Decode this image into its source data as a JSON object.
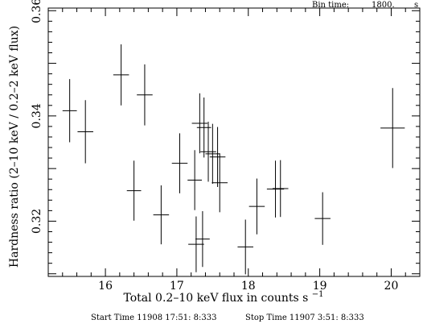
{
  "header": {
    "bin_label": "Bin time:",
    "bin_value": "1800.",
    "bin_unit": "s"
  },
  "footer": {
    "start_time": "Start Time 11908 17:51: 8:333",
    "stop_time": "Stop Time 11907  3:51: 8:333"
  },
  "chart_data": {
    "type": "scatter",
    "xlabel": "Total 0.2–10 keV flux in counts s",
    "xlabel_sup": "−1",
    "ylabel": "Hardness ratio (2–10 keV / 0.2–2 keV flux)",
    "xlim": [
      15.2,
      20.4
    ],
    "ylim": [
      0.3095,
      0.3605
    ],
    "xticks": [
      16,
      17,
      18,
      19,
      20
    ],
    "xtick_labels": [
      "16",
      "17",
      "18",
      "19",
      "20"
    ],
    "yticks": [
      0.32,
      0.34,
      0.36
    ],
    "ytick_labels": [
      "0.32",
      "0.34",
      "0.36"
    ],
    "grid": false,
    "points": [
      {
        "x": 15.5,
        "xerr": 0.1,
        "y": 0.341,
        "yerr": 0.006
      },
      {
        "x": 15.72,
        "xerr": 0.11,
        "y": 0.337,
        "yerr": 0.006
      },
      {
        "x": 16.22,
        "xerr": 0.11,
        "y": 0.3478,
        "yerr": 0.0058
      },
      {
        "x": 16.4,
        "xerr": 0.1,
        "y": 0.3258,
        "yerr": 0.0057
      },
      {
        "x": 16.55,
        "xerr": 0.11,
        "y": 0.344,
        "yerr": 0.0058
      },
      {
        "x": 16.78,
        "xerr": 0.11,
        "y": 0.3212,
        "yerr": 0.0056
      },
      {
        "x": 17.04,
        "xerr": 0.11,
        "y": 0.331,
        "yerr": 0.0057
      },
      {
        "x": 17.25,
        "xerr": 0.1,
        "y": 0.3278,
        "yerr": 0.0057
      },
      {
        "x": 17.27,
        "xerr": 0.11,
        "y": 0.3156,
        "yerr": 0.0053
      },
      {
        "x": 17.32,
        "xerr": 0.11,
        "y": 0.3386,
        "yerr": 0.0057
      },
      {
        "x": 17.36,
        "xerr": 0.1,
        "y": 0.3166,
        "yerr": 0.0053
      },
      {
        "x": 17.38,
        "xerr": 0.1,
        "y": 0.3378,
        "yerr": 0.0057
      },
      {
        "x": 17.44,
        "xerr": 0.11,
        "y": 0.3332,
        "yerr": 0.0057
      },
      {
        "x": 17.5,
        "xerr": 0.1,
        "y": 0.3328,
        "yerr": 0.0057
      },
      {
        "x": 17.57,
        "xerr": 0.11,
        "y": 0.3322,
        "yerr": 0.0057
      },
      {
        "x": 17.6,
        "xerr": 0.11,
        "y": 0.3273,
        "yerr": 0.0056
      },
      {
        "x": 17.96,
        "xerr": 0.11,
        "y": 0.3151,
        "yerr": 0.0052
      },
      {
        "x": 18.12,
        "xerr": 0.11,
        "y": 0.3228,
        "yerr": 0.0053
      },
      {
        "x": 18.38,
        "xerr": 0.12,
        "y": 0.3261,
        "yerr": 0.0054
      },
      {
        "x": 18.45,
        "xerr": 0.11,
        "y": 0.3262,
        "yerr": 0.0054
      },
      {
        "x": 19.04,
        "xerr": 0.11,
        "y": 0.3205,
        "yerr": 0.005
      },
      {
        "x": 20.02,
        "xerr": 0.17,
        "y": 0.3377,
        "yerr": 0.0076
      }
    ]
  }
}
